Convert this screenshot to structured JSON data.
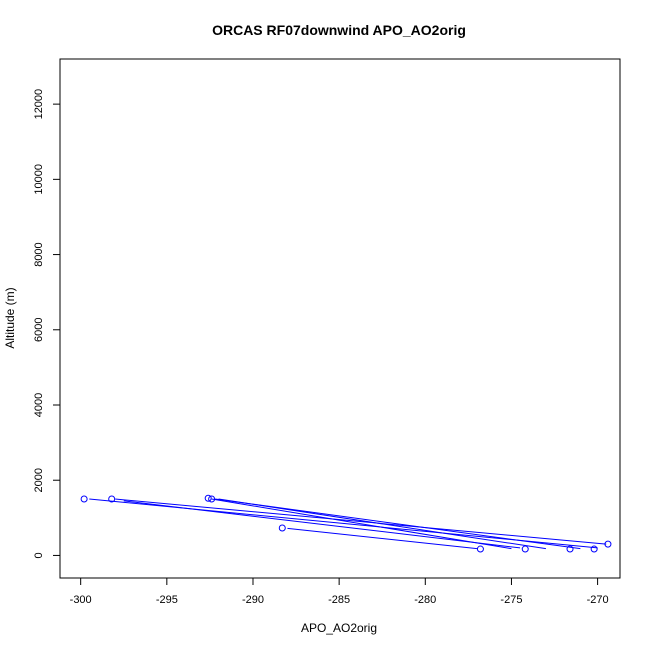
{
  "chart_data": {
    "type": "line",
    "title": "ORCAS RF07downwind APO_AO2orig",
    "xlabel": "APO_AO2orig",
    "ylabel": "Altitude (m)",
    "xlim": [
      -301.2,
      -268.7
    ],
    "ylim": [
      -600,
      13200
    ],
    "x_ticks": [
      -300,
      -295,
      -290,
      -285,
      -280,
      -275,
      -270
    ],
    "y_ticks": [
      0,
      2000,
      4000,
      6000,
      8000,
      10000,
      12000
    ],
    "line_color": "#0000ff",
    "marker_color": "#0000ff",
    "grid": false,
    "legend": "none",
    "series": [
      {
        "name": "",
        "line_segments": [
          [
            [
              -299.5,
              1500
            ],
            [
              -270.0,
              200
            ]
          ],
          [
            [
              -298.0,
              1500
            ],
            [
              -269.5,
              300
            ]
          ],
          [
            [
              -292.2,
              1500
            ],
            [
              -271.0,
              180
            ]
          ],
          [
            [
              -292.0,
              1500
            ],
            [
              -273.0,
              180
            ]
          ],
          [
            [
              -292.4,
              1500
            ],
            [
              -275.0,
              180
            ]
          ],
          [
            [
              -288.0,
              720
            ],
            [
              -277.0,
              180
            ]
          ],
          [
            [
              -297.5,
              1450
            ],
            [
              -274.5,
              200
            ]
          ]
        ],
        "points": [
          {
            "x": -299.8,
            "y": 1500
          },
          {
            "x": -298.2,
            "y": 1500
          },
          {
            "x": -292.6,
            "y": 1520
          },
          {
            "x": -292.4,
            "y": 1500
          },
          {
            "x": -288.3,
            "y": 730
          },
          {
            "x": -276.8,
            "y": 170
          },
          {
            "x": -274.2,
            "y": 170
          },
          {
            "x": -271.6,
            "y": 170
          },
          {
            "x": -270.2,
            "y": 170
          },
          {
            "x": -269.4,
            "y": 300
          }
        ]
      }
    ]
  }
}
